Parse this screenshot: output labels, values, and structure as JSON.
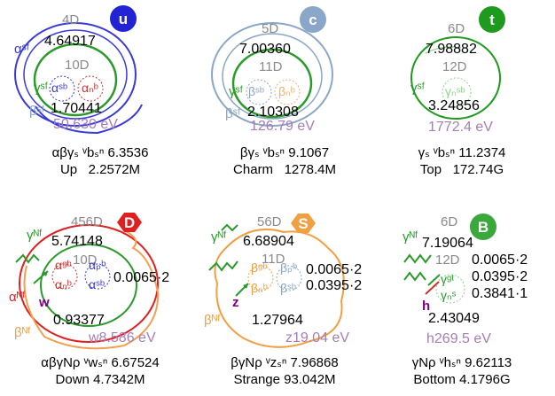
{
  "particles": [
    {
      "symbol": "u",
      "badge_color": "#2323d6",
      "dims": [
        "4D",
        "10D"
      ],
      "values": [
        "4.64917",
        "1.70441"
      ],
      "energy": "50.630 eV",
      "side_labels": [
        "αˢᶠ",
        "γˢᶠ",
        "βˢᶠ"
      ],
      "inner_glyphs": [
        "αˢᵇ",
        "αₙᵇ"
      ],
      "formula": "αβγₛ ᵛbₛⁿ",
      "formula_value": "6.3536",
      "name": "Up",
      "mass": "2.2572M",
      "colors": {
        "outer": "#3a3ad8",
        "middle": "#2a9a2a",
        "inner": "#d03030"
      }
    },
    {
      "symbol": "c",
      "badge_color": "#8aa6c8",
      "dims": [
        "5D",
        "11D"
      ],
      "values": [
        "7.00360",
        "2.10308"
      ],
      "energy": "126.79 eV",
      "side_labels": [
        "γˢᶠ",
        "βˢᶠ"
      ],
      "inner_glyphs": [
        "βˢᵇ",
        "βₙᵇ"
      ],
      "formula": "βγₛ ᵛbₛⁿ",
      "formula_value": "9.1067",
      "name": "Charm",
      "mass": "1278.4M",
      "colors": {
        "outer": "#8aa6c8",
        "middle": "#2a9a2a",
        "inner": "#f0b070"
      }
    },
    {
      "symbol": "t",
      "badge_color": "#1e9a1e",
      "dims": [
        "6D",
        "12D"
      ],
      "values": [
        "7.98882",
        "3.24856"
      ],
      "energy": "1772.4 eV",
      "side_labels": [
        "γˢᶠ"
      ],
      "inner_glyphs": [
        "γₙˢᵇ"
      ],
      "formula": "γₛ ᵛbₛⁿ",
      "formula_value": "11.2374",
      "name": "Top",
      "mass": "172.74G",
      "colors": {
        "outer": "#1e9a1e",
        "middle": "#2a9a2a",
        "inner": "#8fd08f"
      }
    },
    {
      "symbol": "D",
      "badge_color": "#e02020",
      "dims": [
        "456D",
        "10D"
      ],
      "values": [
        "5.74148",
        "0.93377"
      ],
      "energy": "w8.586 eV",
      "side_labels": [
        "γᴺᶠ",
        "αᴺᶠ",
        "w",
        "βᴺᶠ"
      ],
      "inner_glyphs": [
        "αᵍᵇ",
        "αₚᵇ",
        "αₙᵇ",
        "αˢᵇ"
      ],
      "coupling": [
        "0.0065·2"
      ],
      "formula": "αβγNρ ᵛwₛⁿ",
      "formula_value": "6.67524",
      "name": "Down",
      "mass": "4.7342M",
      "colors": {
        "outer": "#e02020",
        "middle": "#2a9a2a",
        "inner": "#f0a050"
      }
    },
    {
      "symbol": "S",
      "badge_color": "#f0a040",
      "dims": [
        "56D",
        "11D"
      ],
      "values": [
        "6.68904",
        "1.27964"
      ],
      "energy": "z19.04 eV",
      "side_labels": [
        "γᴺᶠ",
        "z",
        "βᴺᶠ"
      ],
      "inner_glyphs": [
        "βᵍᵇ",
        "βₚᵇ",
        "βₙᵇ",
        "βˢᵇ"
      ],
      "coupling": [
        "0.0065·2",
        "0.0395·2"
      ],
      "formula": "βγNρ ᵛzₛⁿ",
      "formula_value": "7.96868",
      "name": "Strange",
      "mass": "93.042M",
      "colors": {
        "outer": "#f0a040",
        "middle": "#2a9a2a",
        "inner": "#8aa6c8"
      }
    },
    {
      "symbol": "B",
      "badge_color": "#3aa83a",
      "dims": [
        "6D",
        "12D"
      ],
      "values": [
        "7.19064",
        "2.43049"
      ],
      "energy": "h269.5 eV",
      "side_labels": [
        "γᴺᶠ",
        "h"
      ],
      "inner_glyphs": [
        "γᵍᵗ",
        "γₙˢ"
      ],
      "coupling": [
        "0.0065·2",
        "0.0395·2",
        "0.3841·1"
      ],
      "formula": "γNρ ᵛhₛⁿ",
      "formula_value": "9.62113",
      "name": "Bottom",
      "mass": "4.1796G",
      "colors": {
        "outer": "#3aa83a",
        "middle": "#2a9a2a",
        "inner": "#8fd08f"
      }
    }
  ]
}
